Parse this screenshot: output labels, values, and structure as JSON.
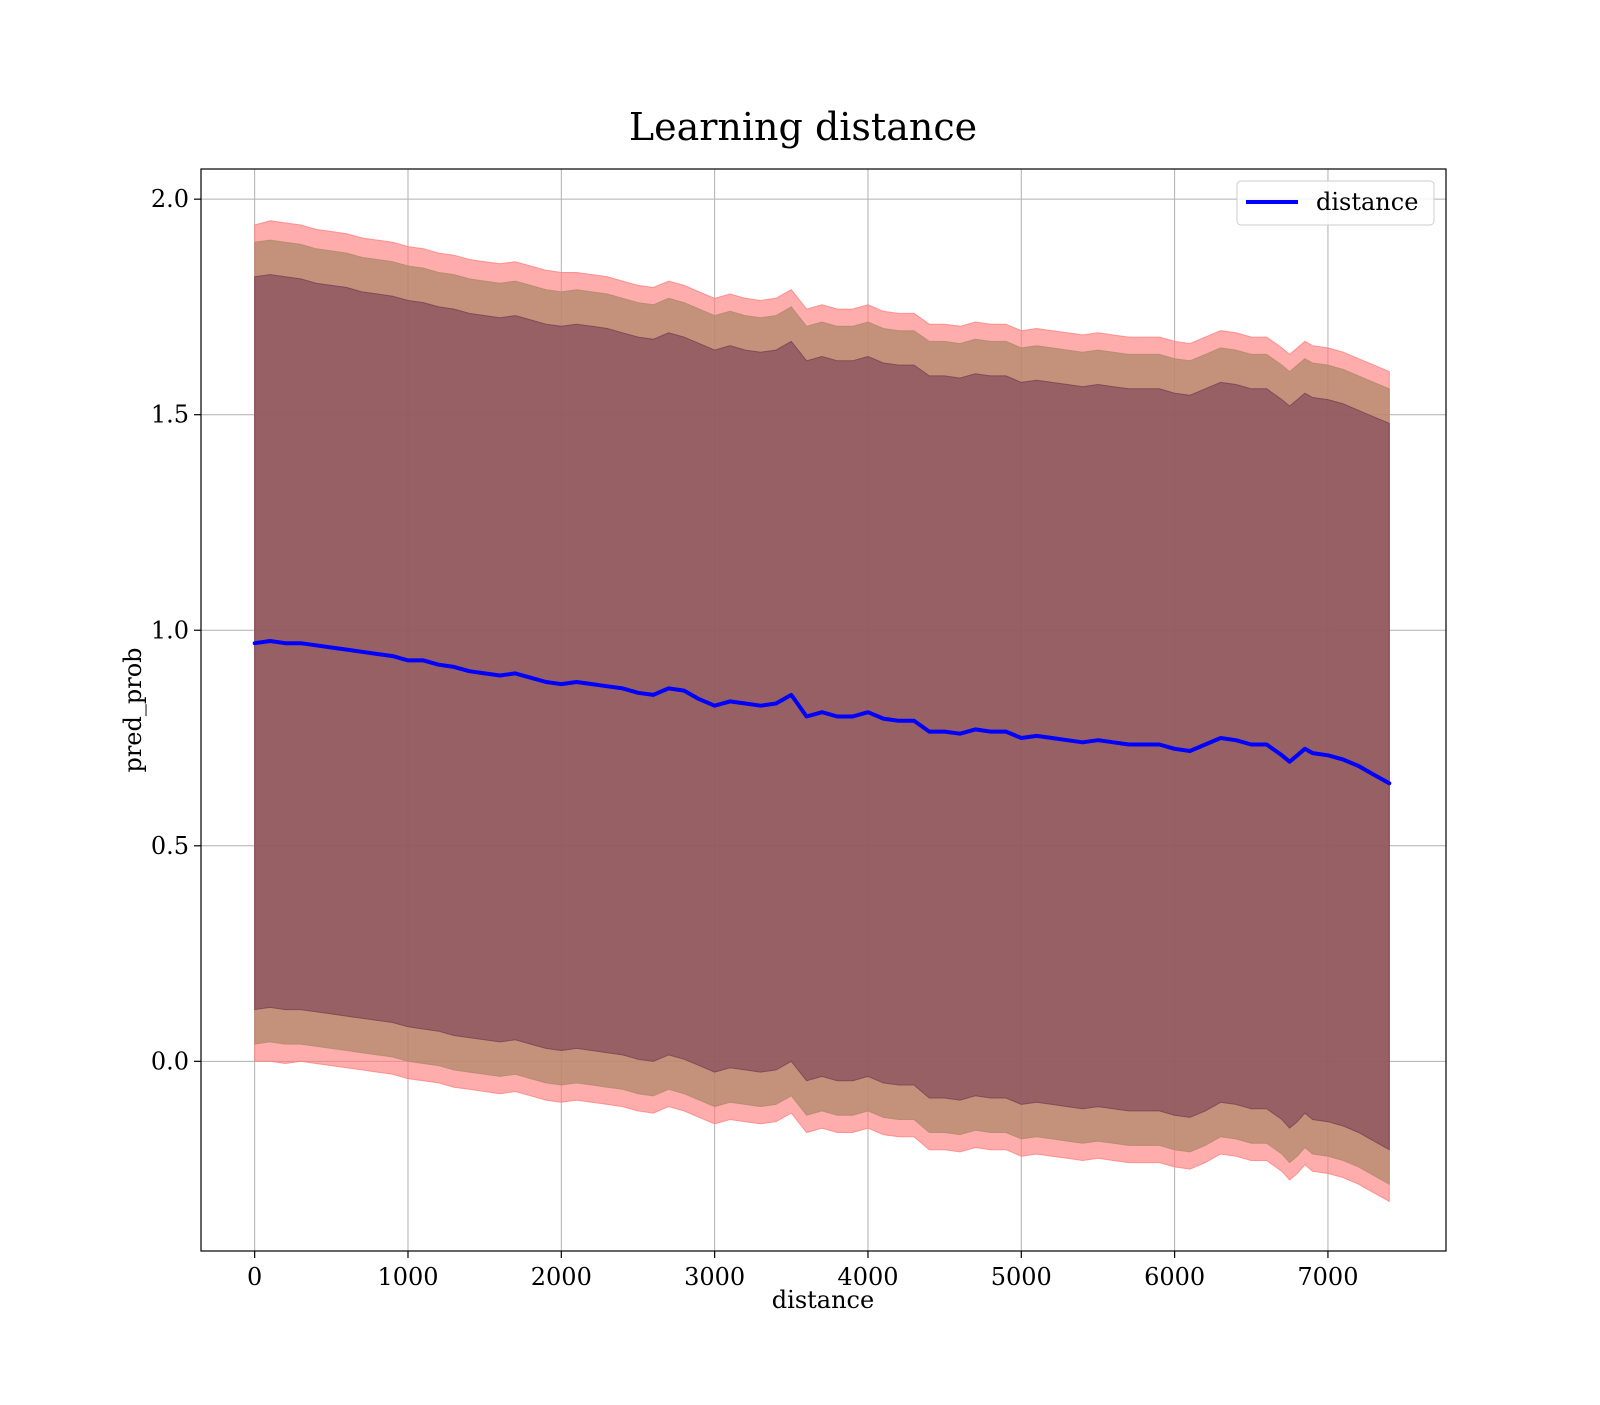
{
  "chart_data": {
    "type": "line",
    "title": "Learning distance",
    "xlabel": "distance",
    "ylabel": "pred_prob",
    "xlim": [
      -350,
      7770
    ],
    "ylim": [
      -0.44,
      2.07
    ],
    "xticks": [
      0,
      1000,
      2000,
      3000,
      4000,
      5000,
      6000,
      7000
    ],
    "yticks": [
      0.0,
      0.5,
      1.0,
      1.5,
      2.0
    ],
    "xtick_labels": [
      "0",
      "1000",
      "2000",
      "3000",
      "4000",
      "5000",
      "6000",
      "7000"
    ],
    "ytick_labels": [
      "0.0",
      "0.5",
      "1.0",
      "1.5",
      "2.0"
    ],
    "grid": true,
    "legend": {
      "position": "top-right",
      "entries": [
        "distance"
      ]
    },
    "colors": {
      "line": "#0000ff",
      "outer_band": "#ff8080",
      "middle_band": "#b08a6a",
      "inner_band": "#7a3f55"
    },
    "x": [
      0,
      100,
      200,
      300,
      400,
      500,
      600,
      700,
      800,
      900,
      1000,
      1100,
      1200,
      1300,
      1400,
      1500,
      1600,
      1700,
      1800,
      1900,
      2000,
      2100,
      2200,
      2300,
      2400,
      2500,
      2600,
      2700,
      2800,
      2900,
      3000,
      3100,
      3200,
      3300,
      3400,
      3500,
      3600,
      3700,
      3800,
      3900,
      4000,
      4100,
      4200,
      4300,
      4400,
      4500,
      4600,
      4700,
      4800,
      4900,
      5000,
      5100,
      5200,
      5300,
      5400,
      5500,
      5600,
      5700,
      5800,
      5900,
      6000,
      6100,
      6200,
      6300,
      6400,
      6500,
      6600,
      6700,
      6750,
      6800,
      6850,
      6900,
      7000,
      7100,
      7200,
      7300,
      7400
    ],
    "series": [
      {
        "name": "distance",
        "values": [
          0.97,
          0.975,
          0.97,
          0.97,
          0.965,
          0.96,
          0.955,
          0.95,
          0.945,
          0.94,
          0.93,
          0.93,
          0.92,
          0.915,
          0.905,
          0.9,
          0.895,
          0.9,
          0.89,
          0.88,
          0.875,
          0.88,
          0.875,
          0.87,
          0.865,
          0.855,
          0.85,
          0.865,
          0.86,
          0.84,
          0.825,
          0.835,
          0.83,
          0.825,
          0.83,
          0.85,
          0.8,
          0.81,
          0.8,
          0.8,
          0.81,
          0.795,
          0.79,
          0.79,
          0.765,
          0.765,
          0.76,
          0.77,
          0.765,
          0.765,
          0.75,
          0.755,
          0.75,
          0.745,
          0.74,
          0.745,
          0.74,
          0.735,
          0.735,
          0.735,
          0.725,
          0.72,
          0.735,
          0.75,
          0.745,
          0.735,
          0.735,
          0.71,
          0.695,
          0.71,
          0.725,
          0.715,
          0.71,
          0.7,
          0.685,
          0.665,
          0.645
        ]
      }
    ],
    "bands": [
      {
        "name": "outer",
        "upper": [
          1.94,
          1.95,
          1.945,
          1.94,
          1.93,
          1.925,
          1.92,
          1.91,
          1.905,
          1.9,
          1.89,
          1.885,
          1.875,
          1.87,
          1.86,
          1.855,
          1.85,
          1.855,
          1.845,
          1.835,
          1.83,
          1.83,
          1.825,
          1.82,
          1.81,
          1.8,
          1.795,
          1.81,
          1.8,
          1.785,
          1.77,
          1.78,
          1.77,
          1.765,
          1.77,
          1.79,
          1.745,
          1.755,
          1.745,
          1.745,
          1.755,
          1.74,
          1.735,
          1.735,
          1.71,
          1.71,
          1.705,
          1.715,
          1.71,
          1.71,
          1.695,
          1.7,
          1.695,
          1.69,
          1.685,
          1.69,
          1.685,
          1.68,
          1.68,
          1.68,
          1.67,
          1.665,
          1.68,
          1.695,
          1.69,
          1.68,
          1.68,
          1.655,
          1.64,
          1.655,
          1.67,
          1.66,
          1.655,
          1.645,
          1.63,
          1.615,
          1.6
        ],
        "lower": [
          0.0,
          0.0,
          -0.005,
          -0.0,
          -0.005,
          -0.01,
          -0.015,
          -0.02,
          -0.025,
          -0.03,
          -0.04,
          -0.045,
          -0.05,
          -0.06,
          -0.065,
          -0.07,
          -0.075,
          -0.07,
          -0.08,
          -0.09,
          -0.095,
          -0.09,
          -0.095,
          -0.1,
          -0.105,
          -0.115,
          -0.12,
          -0.105,
          -0.115,
          -0.13,
          -0.145,
          -0.135,
          -0.14,
          -0.145,
          -0.14,
          -0.12,
          -0.165,
          -0.155,
          -0.165,
          -0.165,
          -0.155,
          -0.17,
          -0.175,
          -0.175,
          -0.205,
          -0.205,
          -0.21,
          -0.2,
          -0.205,
          -0.205,
          -0.22,
          -0.215,
          -0.22,
          -0.225,
          -0.23,
          -0.225,
          -0.23,
          -0.235,
          -0.235,
          -0.235,
          -0.245,
          -0.25,
          -0.235,
          -0.215,
          -0.22,
          -0.23,
          -0.23,
          -0.255,
          -0.275,
          -0.26,
          -0.24,
          -0.255,
          -0.26,
          -0.27,
          -0.285,
          -0.305,
          -0.325
        ]
      },
      {
        "name": "middle",
        "upper": [
          1.9,
          1.905,
          1.9,
          1.895,
          1.885,
          1.88,
          1.875,
          1.865,
          1.86,
          1.855,
          1.845,
          1.84,
          1.83,
          1.825,
          1.815,
          1.81,
          1.805,
          1.81,
          1.8,
          1.79,
          1.785,
          1.79,
          1.785,
          1.78,
          1.77,
          1.76,
          1.755,
          1.77,
          1.76,
          1.745,
          1.73,
          1.74,
          1.73,
          1.725,
          1.73,
          1.75,
          1.705,
          1.715,
          1.705,
          1.705,
          1.715,
          1.7,
          1.695,
          1.695,
          1.67,
          1.67,
          1.665,
          1.675,
          1.67,
          1.67,
          1.655,
          1.66,
          1.655,
          1.65,
          1.645,
          1.65,
          1.645,
          1.64,
          1.64,
          1.64,
          1.63,
          1.625,
          1.64,
          1.655,
          1.65,
          1.64,
          1.64,
          1.615,
          1.6,
          1.615,
          1.63,
          1.62,
          1.615,
          1.605,
          1.59,
          1.575,
          1.56
        ],
        "lower": [
          0.04,
          0.045,
          0.04,
          0.04,
          0.035,
          0.03,
          0.025,
          0.02,
          0.015,
          0.01,
          0.0,
          -0.005,
          -0.01,
          -0.02,
          -0.025,
          -0.03,
          -0.035,
          -0.03,
          -0.04,
          -0.05,
          -0.055,
          -0.05,
          -0.055,
          -0.06,
          -0.065,
          -0.075,
          -0.08,
          -0.065,
          -0.075,
          -0.09,
          -0.105,
          -0.095,
          -0.1,
          -0.105,
          -0.1,
          -0.08,
          -0.125,
          -0.115,
          -0.125,
          -0.125,
          -0.115,
          -0.13,
          -0.135,
          -0.135,
          -0.165,
          -0.165,
          -0.17,
          -0.16,
          -0.165,
          -0.165,
          -0.18,
          -0.175,
          -0.18,
          -0.185,
          -0.19,
          -0.185,
          -0.19,
          -0.195,
          -0.195,
          -0.195,
          -0.205,
          -0.21,
          -0.195,
          -0.175,
          -0.18,
          -0.19,
          -0.19,
          -0.215,
          -0.235,
          -0.22,
          -0.2,
          -0.215,
          -0.22,
          -0.23,
          -0.245,
          -0.265,
          -0.285
        ]
      },
      {
        "name": "inner",
        "upper": [
          1.82,
          1.825,
          1.82,
          1.815,
          1.805,
          1.8,
          1.795,
          1.785,
          1.78,
          1.775,
          1.765,
          1.76,
          1.75,
          1.745,
          1.735,
          1.73,
          1.725,
          1.73,
          1.72,
          1.71,
          1.705,
          1.71,
          1.705,
          1.7,
          1.69,
          1.68,
          1.675,
          1.69,
          1.68,
          1.665,
          1.65,
          1.66,
          1.65,
          1.645,
          1.65,
          1.67,
          1.625,
          1.635,
          1.625,
          1.625,
          1.635,
          1.62,
          1.615,
          1.615,
          1.59,
          1.59,
          1.585,
          1.595,
          1.59,
          1.59,
          1.575,
          1.58,
          1.575,
          1.57,
          1.565,
          1.57,
          1.565,
          1.56,
          1.56,
          1.56,
          1.55,
          1.545,
          1.56,
          1.575,
          1.57,
          1.56,
          1.56,
          1.535,
          1.52,
          1.535,
          1.55,
          1.54,
          1.535,
          1.525,
          1.51,
          1.495,
          1.48
        ],
        "lower": [
          0.12,
          0.125,
          0.12,
          0.12,
          0.115,
          0.11,
          0.105,
          0.1,
          0.095,
          0.09,
          0.08,
          0.075,
          0.07,
          0.06,
          0.055,
          0.05,
          0.045,
          0.05,
          0.04,
          0.03,
          0.025,
          0.03,
          0.025,
          0.02,
          0.015,
          0.005,
          0.0,
          0.015,
          0.005,
          -0.01,
          -0.025,
          -0.015,
          -0.02,
          -0.025,
          -0.02,
          0.0,
          -0.045,
          -0.035,
          -0.045,
          -0.045,
          -0.035,
          -0.05,
          -0.055,
          -0.055,
          -0.085,
          -0.085,
          -0.09,
          -0.08,
          -0.085,
          -0.085,
          -0.1,
          -0.095,
          -0.1,
          -0.105,
          -0.11,
          -0.105,
          -0.11,
          -0.115,
          -0.115,
          -0.115,
          -0.125,
          -0.13,
          -0.115,
          -0.095,
          -0.1,
          -0.11,
          -0.11,
          -0.135,
          -0.155,
          -0.14,
          -0.12,
          -0.135,
          -0.14,
          -0.15,
          -0.165,
          -0.185,
          -0.205
        ]
      }
    ]
  }
}
